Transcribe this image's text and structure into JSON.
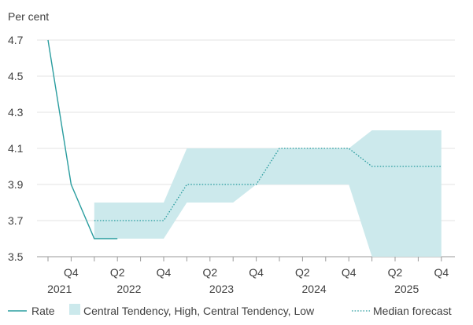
{
  "chart_data": {
    "type": "line",
    "ylabel": "Per cent",
    "ylim": [
      3.5,
      4.7
    ],
    "yticks": [
      "4.7",
      "4.5",
      "4.3",
      "4.1",
      "3.9",
      "3.7",
      "3.5"
    ],
    "quarters": [
      "2021Q3",
      "2021Q4",
      "2022Q1",
      "2022Q2",
      "2022Q3",
      "2022Q4",
      "2023Q1",
      "2023Q2",
      "2023Q3",
      "2023Q4",
      "2024Q1",
      "2024Q2",
      "2024Q3",
      "2024Q4",
      "2025Q1",
      "2025Q2",
      "2025Q3",
      "2025Q4"
    ],
    "xtick_labels": [
      "Q4",
      "Q2",
      "Q4",
      "Q2",
      "Q4",
      "Q2",
      "Q4",
      "Q2",
      "Q4"
    ],
    "year_labels": [
      "2021",
      "2022",
      "2023",
      "2024",
      "2025"
    ],
    "grid": true,
    "legend_position": "bottom",
    "series": [
      {
        "name": "Rate",
        "style": "solid",
        "color": "#2a9d9f",
        "points": [
          [
            "2021Q3",
            4.7
          ],
          [
            "2021Q4",
            3.9
          ],
          [
            "2022Q1",
            3.6
          ],
          [
            "2022Q2",
            3.6
          ]
        ]
      },
      {
        "name": "Central Tendency, High, Central Tendency, Low",
        "style": "band",
        "color": "#cce9ec",
        "high": [
          [
            "2022Q1",
            3.8
          ],
          [
            "2022Q4",
            3.8
          ],
          [
            "2023Q1",
            4.1
          ],
          [
            "2024Q4",
            4.1
          ],
          [
            "2025Q1",
            4.2
          ],
          [
            "2025Q4",
            4.2
          ]
        ],
        "low": [
          [
            "2022Q1",
            3.6
          ],
          [
            "2022Q4",
            3.6
          ],
          [
            "2023Q1",
            3.8
          ],
          [
            "2023Q3",
            3.8
          ],
          [
            "2023Q4",
            3.9
          ],
          [
            "2024Q4",
            3.9
          ],
          [
            "2025Q1",
            3.5
          ],
          [
            "2025Q4",
            3.5
          ]
        ]
      },
      {
        "name": "Median forecast",
        "style": "dotted",
        "color": "#2a9d9f",
        "points": [
          [
            "2022Q1",
            3.7
          ],
          [
            "2022Q4",
            3.7
          ],
          [
            "2023Q1",
            3.9
          ],
          [
            "2023Q4",
            3.9
          ],
          [
            "2024Q1",
            4.1
          ],
          [
            "2024Q4",
            4.1
          ],
          [
            "2025Q1",
            4.0
          ],
          [
            "2025Q4",
            4.0
          ]
        ]
      }
    ]
  }
}
